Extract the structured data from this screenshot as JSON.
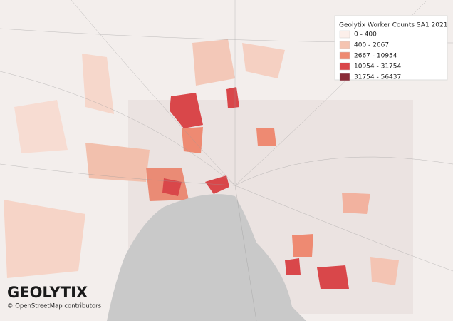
{
  "legend": {
    "title": "Geolytix Worker Counts SA1 2021",
    "items": [
      {
        "label": "0 - 400",
        "color": "#fcefea"
      },
      {
        "label": "400 - 2667",
        "color": "#f5c4b1"
      },
      {
        "label": "2667 - 10954",
        "color": "#ee8a72"
      },
      {
        "label": "10954 - 31754",
        "color": "#d9474a"
      },
      {
        "label": "31754 - 56437",
        "color": "#8a2a36"
      }
    ]
  },
  "logo": "GEOLYTIX",
  "attribution": "© OpenStreetMap contributors"
}
